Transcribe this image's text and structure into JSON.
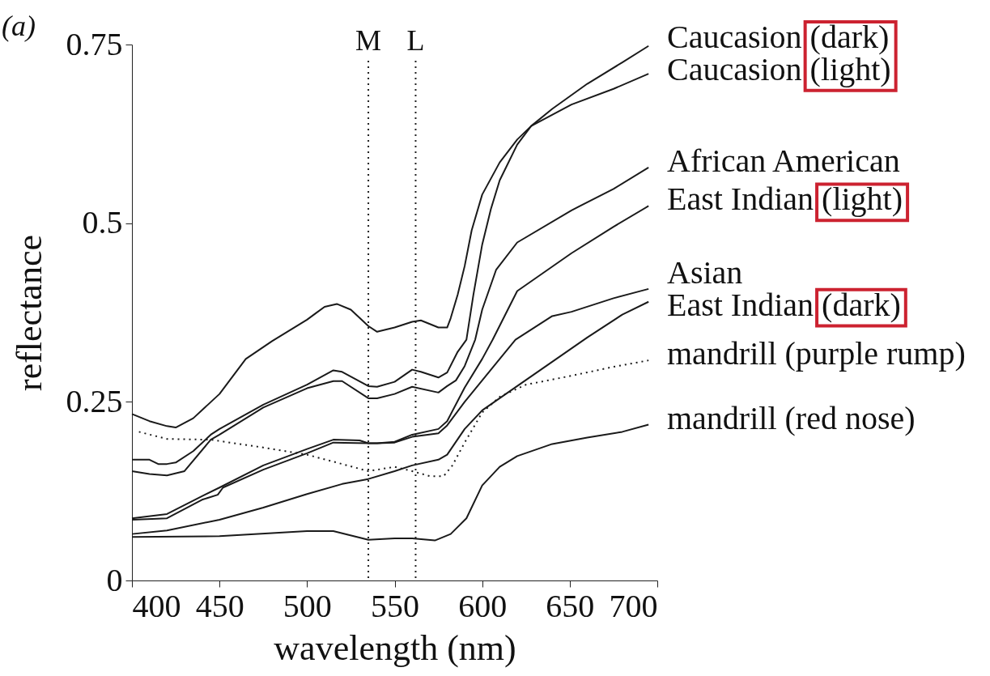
{
  "chart_data": {
    "type": "line",
    "xlabel": "wavelength (nm)",
    "ylabel": "reflectance",
    "annotations": [
      "(a)"
    ],
    "xlim": [
      400,
      700
    ],
    "ylim": [
      0,
      0.75
    ],
    "xticks": [
      400,
      450,
      500,
      550,
      600,
      650,
      700
    ],
    "yticks": [
      0,
      0.25,
      0.5,
      0.75
    ],
    "grid": false,
    "line_style": "solid",
    "ref_lines": [
      {
        "axis": "x",
        "value": 535,
        "label": "M",
        "line_style": "dotted",
        "color": "#222222"
      },
      {
        "axis": "x",
        "value": 562,
        "label": "L",
        "line_style": "dotted",
        "color": "#222222"
      }
    ],
    "series": [
      {
        "name": "Caucasion (dark)",
        "color": "#1a1a1a",
        "x": [
          400,
          410,
          415,
          420,
          425,
          435,
          445,
          450,
          475,
          500,
          515,
          520,
          535,
          540,
          550,
          560,
          565,
          575,
          580,
          586,
          591,
          595,
          600,
          605,
          610,
          620,
          628,
          640,
          660,
          680,
          695
        ],
        "values": [
          0.169,
          0.169,
          0.163,
          0.163,
          0.165,
          0.181,
          0.204,
          0.212,
          0.246,
          0.274,
          0.294,
          0.292,
          0.272,
          0.271,
          0.278,
          0.295,
          0.292,
          0.284,
          0.291,
          0.32,
          0.337,
          0.4,
          0.47,
          0.52,
          0.56,
          0.61,
          0.636,
          0.66,
          0.695,
          0.725,
          0.748
        ]
      },
      {
        "name": "Caucasion (light)",
        "color": "#1a1a1a",
        "x": [
          400,
          410,
          420,
          425,
          435,
          450,
          465,
          480,
          500,
          505,
          510,
          517,
          525,
          535,
          540,
          550,
          560,
          565,
          575,
          580,
          582,
          586,
          590,
          594,
          600,
          610,
          620,
          628,
          651,
          675,
          695
        ],
        "values": [
          0.233,
          0.223,
          0.216,
          0.214,
          0.227,
          0.261,
          0.31,
          0.335,
          0.365,
          0.374,
          0.383,
          0.387,
          0.379,
          0.356,
          0.348,
          0.354,
          0.362,
          0.364,
          0.354,
          0.354,
          0.367,
          0.4,
          0.44,
          0.49,
          0.54,
          0.585,
          0.617,
          0.636,
          0.666,
          0.688,
          0.709
        ]
      },
      {
        "name": "African American",
        "color": "#1a1a1a",
        "x": [
          400,
          410,
          420,
          430,
          445,
          450,
          475,
          500,
          515,
          520,
          535,
          540,
          550,
          560,
          575,
          580,
          585,
          590,
          596,
          600,
          608,
          620,
          651,
          675,
          695
        ],
        "values": [
          0.153,
          0.149,
          0.147,
          0.153,
          0.197,
          0.204,
          0.242,
          0.269,
          0.279,
          0.279,
          0.255,
          0.255,
          0.261,
          0.271,
          0.263,
          0.272,
          0.28,
          0.3,
          0.337,
          0.379,
          0.435,
          0.473,
          0.518,
          0.548,
          0.578
        ]
      },
      {
        "name": "East Indian (light)",
        "color": "#1a1a1a",
        "x": [
          400,
          420,
          440,
          450,
          475,
          500,
          515,
          530,
          535,
          540,
          550,
          560,
          575,
          580,
          590,
          600,
          606,
          620,
          651,
          675,
          695
        ],
        "values": [
          0.087,
          0.093,
          0.118,
          0.13,
          0.161,
          0.184,
          0.197,
          0.196,
          0.192,
          0.192,
          0.194,
          0.204,
          0.212,
          0.223,
          0.27,
          0.31,
          0.337,
          0.405,
          0.458,
          0.495,
          0.524
        ]
      },
      {
        "name": "Asian",
        "color": "#1a1a1a",
        "x": [
          400,
          420,
          440,
          449,
          452,
          475,
          500,
          515,
          535,
          540,
          550,
          560,
          575,
          580,
          590,
          600,
          610,
          619,
          640,
          651,
          675,
          695
        ],
        "values": [
          0.085,
          0.087,
          0.113,
          0.12,
          0.13,
          0.155,
          0.178,
          0.193,
          0.192,
          0.192,
          0.193,
          0.201,
          0.206,
          0.217,
          0.25,
          0.28,
          0.31,
          0.337,
          0.37,
          0.376,
          0.395,
          0.408
        ]
      },
      {
        "name": "East Indian (dark)",
        "color": "#1a1a1a",
        "x": [
          400,
          420,
          450,
          475,
          500,
          520,
          535,
          550,
          560,
          575,
          580,
          590,
          600,
          620,
          640,
          660,
          680,
          695
        ],
        "values": [
          0.065,
          0.07,
          0.085,
          0.102,
          0.121,
          0.135,
          0.142,
          0.153,
          0.161,
          0.169,
          0.176,
          0.212,
          0.238,
          0.272,
          0.306,
          0.34,
          0.372,
          0.39
        ]
      },
      {
        "name": "mandrill (purple rump)",
        "color": "#1a1a1a",
        "line_style": "dotted",
        "x": [
          404,
          420,
          445,
          475,
          500,
          520,
          535,
          540,
          550,
          560,
          570,
          578,
          583,
          590,
          600,
          610,
          625,
          650,
          675,
          695
        ],
        "values": [
          0.208,
          0.198,
          0.197,
          0.186,
          0.176,
          0.163,
          0.153,
          0.155,
          0.159,
          0.153,
          0.146,
          0.146,
          0.161,
          0.193,
          0.235,
          0.257,
          0.274,
          0.286,
          0.299,
          0.308
        ]
      },
      {
        "name": "mandrill (red nose)",
        "color": "#1a1a1a",
        "x": [
          400,
          450,
          500,
          515,
          535,
          550,
          560,
          573,
          582,
          591,
          600,
          610,
          620,
          640,
          660,
          680,
          695
        ],
        "values": [
          0.061,
          0.062,
          0.069,
          0.069,
          0.057,
          0.059,
          0.059,
          0.056,
          0.065,
          0.087,
          0.133,
          0.159,
          0.174,
          0.191,
          0.2,
          0.208,
          0.218
        ]
      }
    ]
  }
}
